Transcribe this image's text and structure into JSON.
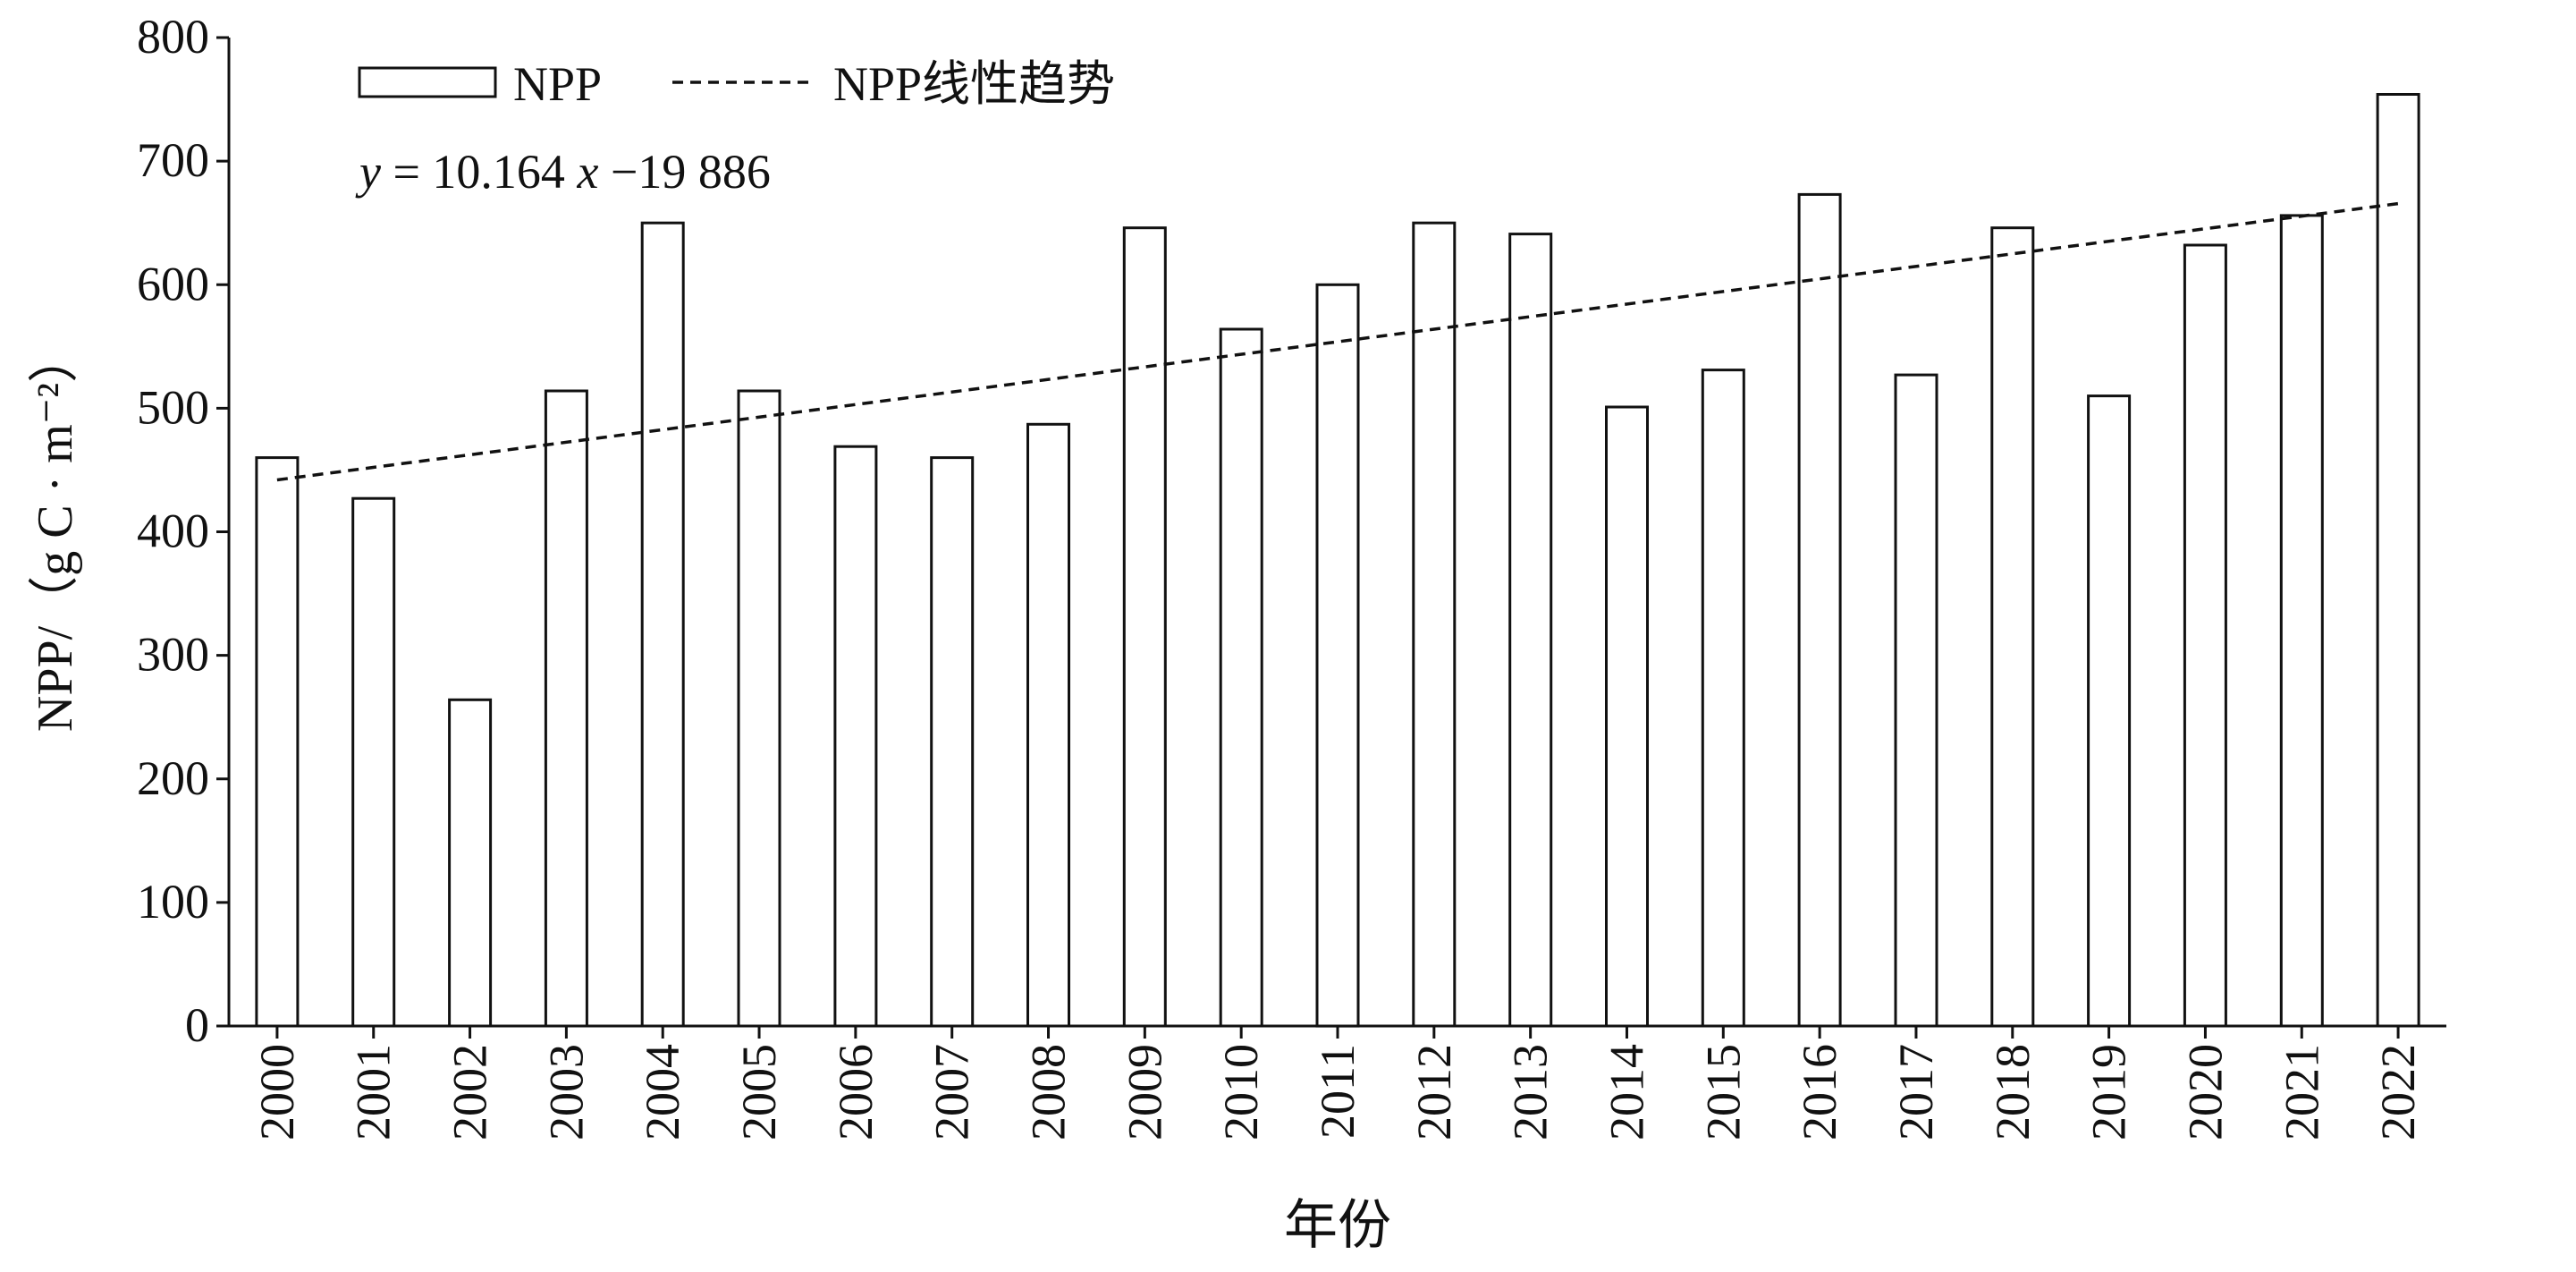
{
  "chart_data": {
    "type": "bar",
    "categories": [
      "2000",
      "2001",
      "2002",
      "2003",
      "2004",
      "2005",
      "2006",
      "2007",
      "2008",
      "2009",
      "2010",
      "2011",
      "2012",
      "2013",
      "2014",
      "2015",
      "2016",
      "2017",
      "2018",
      "2019",
      "2020",
      "2021",
      "2022"
    ],
    "series": [
      {
        "name": "NPP",
        "values": [
          460,
          427,
          264,
          514,
          650,
          514,
          469,
          460,
          487,
          646,
          564,
          600,
          650,
          641,
          501,
          531,
          673,
          527,
          646,
          510,
          632,
          656,
          754
        ]
      }
    ],
    "trendline": {
      "name": "NPP线性趋势",
      "equation": "y = 10.164 x −19 886",
      "slope": 10.164,
      "intercept": -19886,
      "style": "dashed"
    },
    "xlabel": "年份",
    "ylabel": "NPP/（g C · m⁻²）",
    "ylim": [
      0,
      800
    ],
    "yticks": [
      0,
      100,
      200,
      300,
      400,
      500,
      600,
      700,
      800
    ],
    "grid": false,
    "legend_position": "top-left",
    "colors": {
      "bar_fill": "#ffffff",
      "bar_stroke": "#111111",
      "axis": "#111111",
      "trendline": "#111111"
    }
  }
}
